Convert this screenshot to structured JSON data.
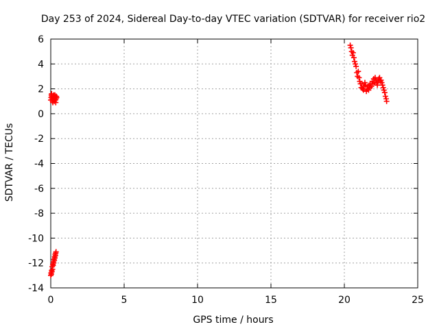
{
  "chart_data": {
    "type": "scatter",
    "title": "Day 253 of 2024, Sidereal Day-to-day VTEC variation (SDTVAR) for receiver rio2",
    "xlabel": "GPS time / hours",
    "ylabel": "SDTVAR / TECUs",
    "xlim": [
      0,
      25
    ],
    "ylim": [
      -14,
      6
    ],
    "xticks": [
      "0",
      "5",
      "10",
      "15",
      "20",
      "25"
    ],
    "yticks": [
      "6",
      "4",
      "2",
      "0",
      "-2",
      "-4",
      "-6",
      "-8",
      "-10",
      "-12",
      "-14"
    ],
    "grid": true,
    "marker": "+",
    "color": "#ff0000",
    "series": [
      {
        "values": [
          [
            0.0,
            1.1
          ],
          [
            0.02,
            1.3
          ],
          [
            0.04,
            1.5
          ],
          [
            0.06,
            1.6
          ],
          [
            0.08,
            1.4
          ],
          [
            0.1,
            1.2
          ],
          [
            0.12,
            1.0
          ],
          [
            0.14,
            0.9
          ],
          [
            0.16,
            1.1
          ],
          [
            0.18,
            1.4
          ],
          [
            0.2,
            1.5
          ],
          [
            0.22,
            1.3
          ],
          [
            0.24,
            1.0
          ],
          [
            0.26,
            1.2
          ],
          [
            0.28,
            1.5
          ],
          [
            0.3,
            1.4
          ],
          [
            0.32,
            1.1
          ],
          [
            0.34,
            0.9
          ],
          [
            0.36,
            1.2
          ],
          [
            0.38,
            1.4
          ],
          [
            0.4,
            1.3
          ],
          [
            0.0,
            -13.0
          ],
          [
            0.02,
            -12.8
          ],
          [
            0.04,
            -12.9
          ],
          [
            0.06,
            -12.6
          ],
          [
            0.08,
            -12.7
          ],
          [
            0.1,
            -12.3
          ],
          [
            0.12,
            -12.5
          ],
          [
            0.14,
            -12.1
          ],
          [
            0.16,
            -12.2
          ],
          [
            0.18,
            -11.9
          ],
          [
            0.2,
            -12.0
          ],
          [
            0.22,
            -11.7
          ],
          [
            0.24,
            -11.8
          ],
          [
            0.26,
            -11.5
          ],
          [
            0.28,
            -11.6
          ],
          [
            0.3,
            -11.3
          ],
          [
            0.32,
            -11.4
          ],
          [
            0.34,
            -11.2
          ],
          [
            0.36,
            -11.1
          ],
          [
            20.4,
            5.5
          ],
          [
            20.45,
            5.3
          ],
          [
            20.5,
            5.0
          ],
          [
            20.55,
            4.7
          ],
          [
            20.6,
            4.9
          ],
          [
            20.65,
            4.5
          ],
          [
            20.7,
            4.2
          ],
          [
            20.75,
            4.0
          ],
          [
            20.8,
            3.8
          ],
          [
            20.85,
            3.3
          ],
          [
            20.9,
            3.0
          ],
          [
            20.95,
            3.4
          ],
          [
            21.0,
            2.9
          ],
          [
            21.05,
            2.6
          ],
          [
            21.1,
            2.4
          ],
          [
            21.15,
            2.1
          ],
          [
            21.2,
            2.4
          ],
          [
            21.25,
            2.0
          ],
          [
            21.3,
            1.9
          ],
          [
            21.35,
            2.2
          ],
          [
            21.4,
            2.5
          ],
          [
            21.45,
            2.3
          ],
          [
            21.5,
            1.8
          ],
          [
            21.55,
            2.0
          ],
          [
            21.6,
            2.2
          ],
          [
            21.65,
            1.9
          ],
          [
            21.7,
            2.3
          ],
          [
            21.75,
            2.1
          ],
          [
            21.8,
            2.4
          ],
          [
            21.85,
            2.2
          ],
          [
            21.9,
            2.6
          ],
          [
            21.95,
            2.4
          ],
          [
            22.0,
            2.8
          ],
          [
            22.05,
            2.5
          ],
          [
            22.1,
            2.9
          ],
          [
            22.15,
            2.7
          ],
          [
            22.2,
            2.5
          ],
          [
            22.25,
            2.3
          ],
          [
            22.3,
            2.6
          ],
          [
            22.35,
            2.8
          ],
          [
            22.4,
            2.9
          ],
          [
            22.45,
            2.6
          ],
          [
            22.5,
            2.7
          ],
          [
            22.55,
            2.5
          ],
          [
            22.6,
            2.3
          ],
          [
            22.65,
            2.1
          ],
          [
            22.7,
            1.9
          ],
          [
            22.75,
            1.7
          ],
          [
            22.8,
            1.4
          ],
          [
            22.85,
            1.2
          ],
          [
            22.88,
            1.0
          ]
        ]
      }
    ]
  }
}
